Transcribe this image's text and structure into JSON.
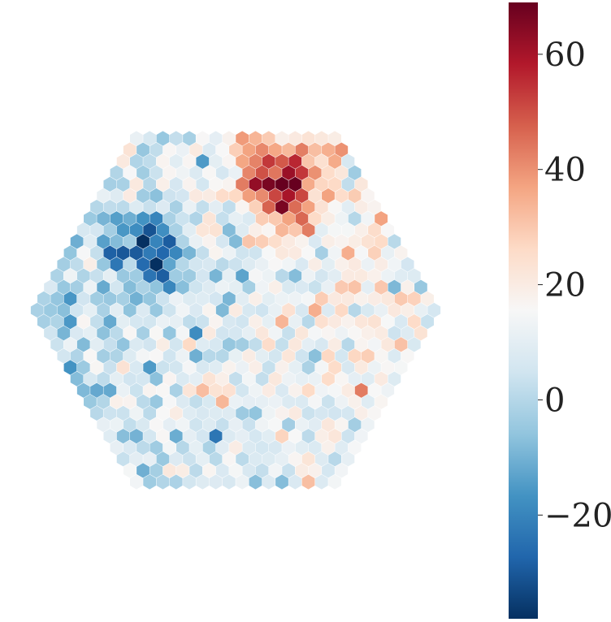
{
  "chart_data": {
    "type": "heatmap",
    "subtype": "hexagonal-camera-map",
    "title": "",
    "xlabel": "",
    "ylabel": "",
    "grid": false,
    "axes_visible": false,
    "hex_grid_radius": 15,
    "value_range": [
      -38,
      69
    ],
    "features": [
      {
        "kind": "hotspot",
        "center_axial": [
          9,
          -11
        ],
        "peak": 69,
        "sigma": 2.3
      },
      {
        "kind": "coldspot",
        "center_axial": [
          -4,
          -5
        ],
        "peak": -38,
        "sigma": 2.0
      }
    ],
    "background_gradient": {
      "mean": 10,
      "slope": 9,
      "noise_sd": 9
    },
    "colorbar": {
      "colormap": "RdBu_r",
      "range": [
        -38,
        69
      ],
      "ticks": [
        -20,
        0,
        20,
        40,
        60
      ],
      "tick_labels": [
        "−20",
        "0",
        "20",
        "40",
        "60"
      ],
      "placement": "right"
    }
  }
}
